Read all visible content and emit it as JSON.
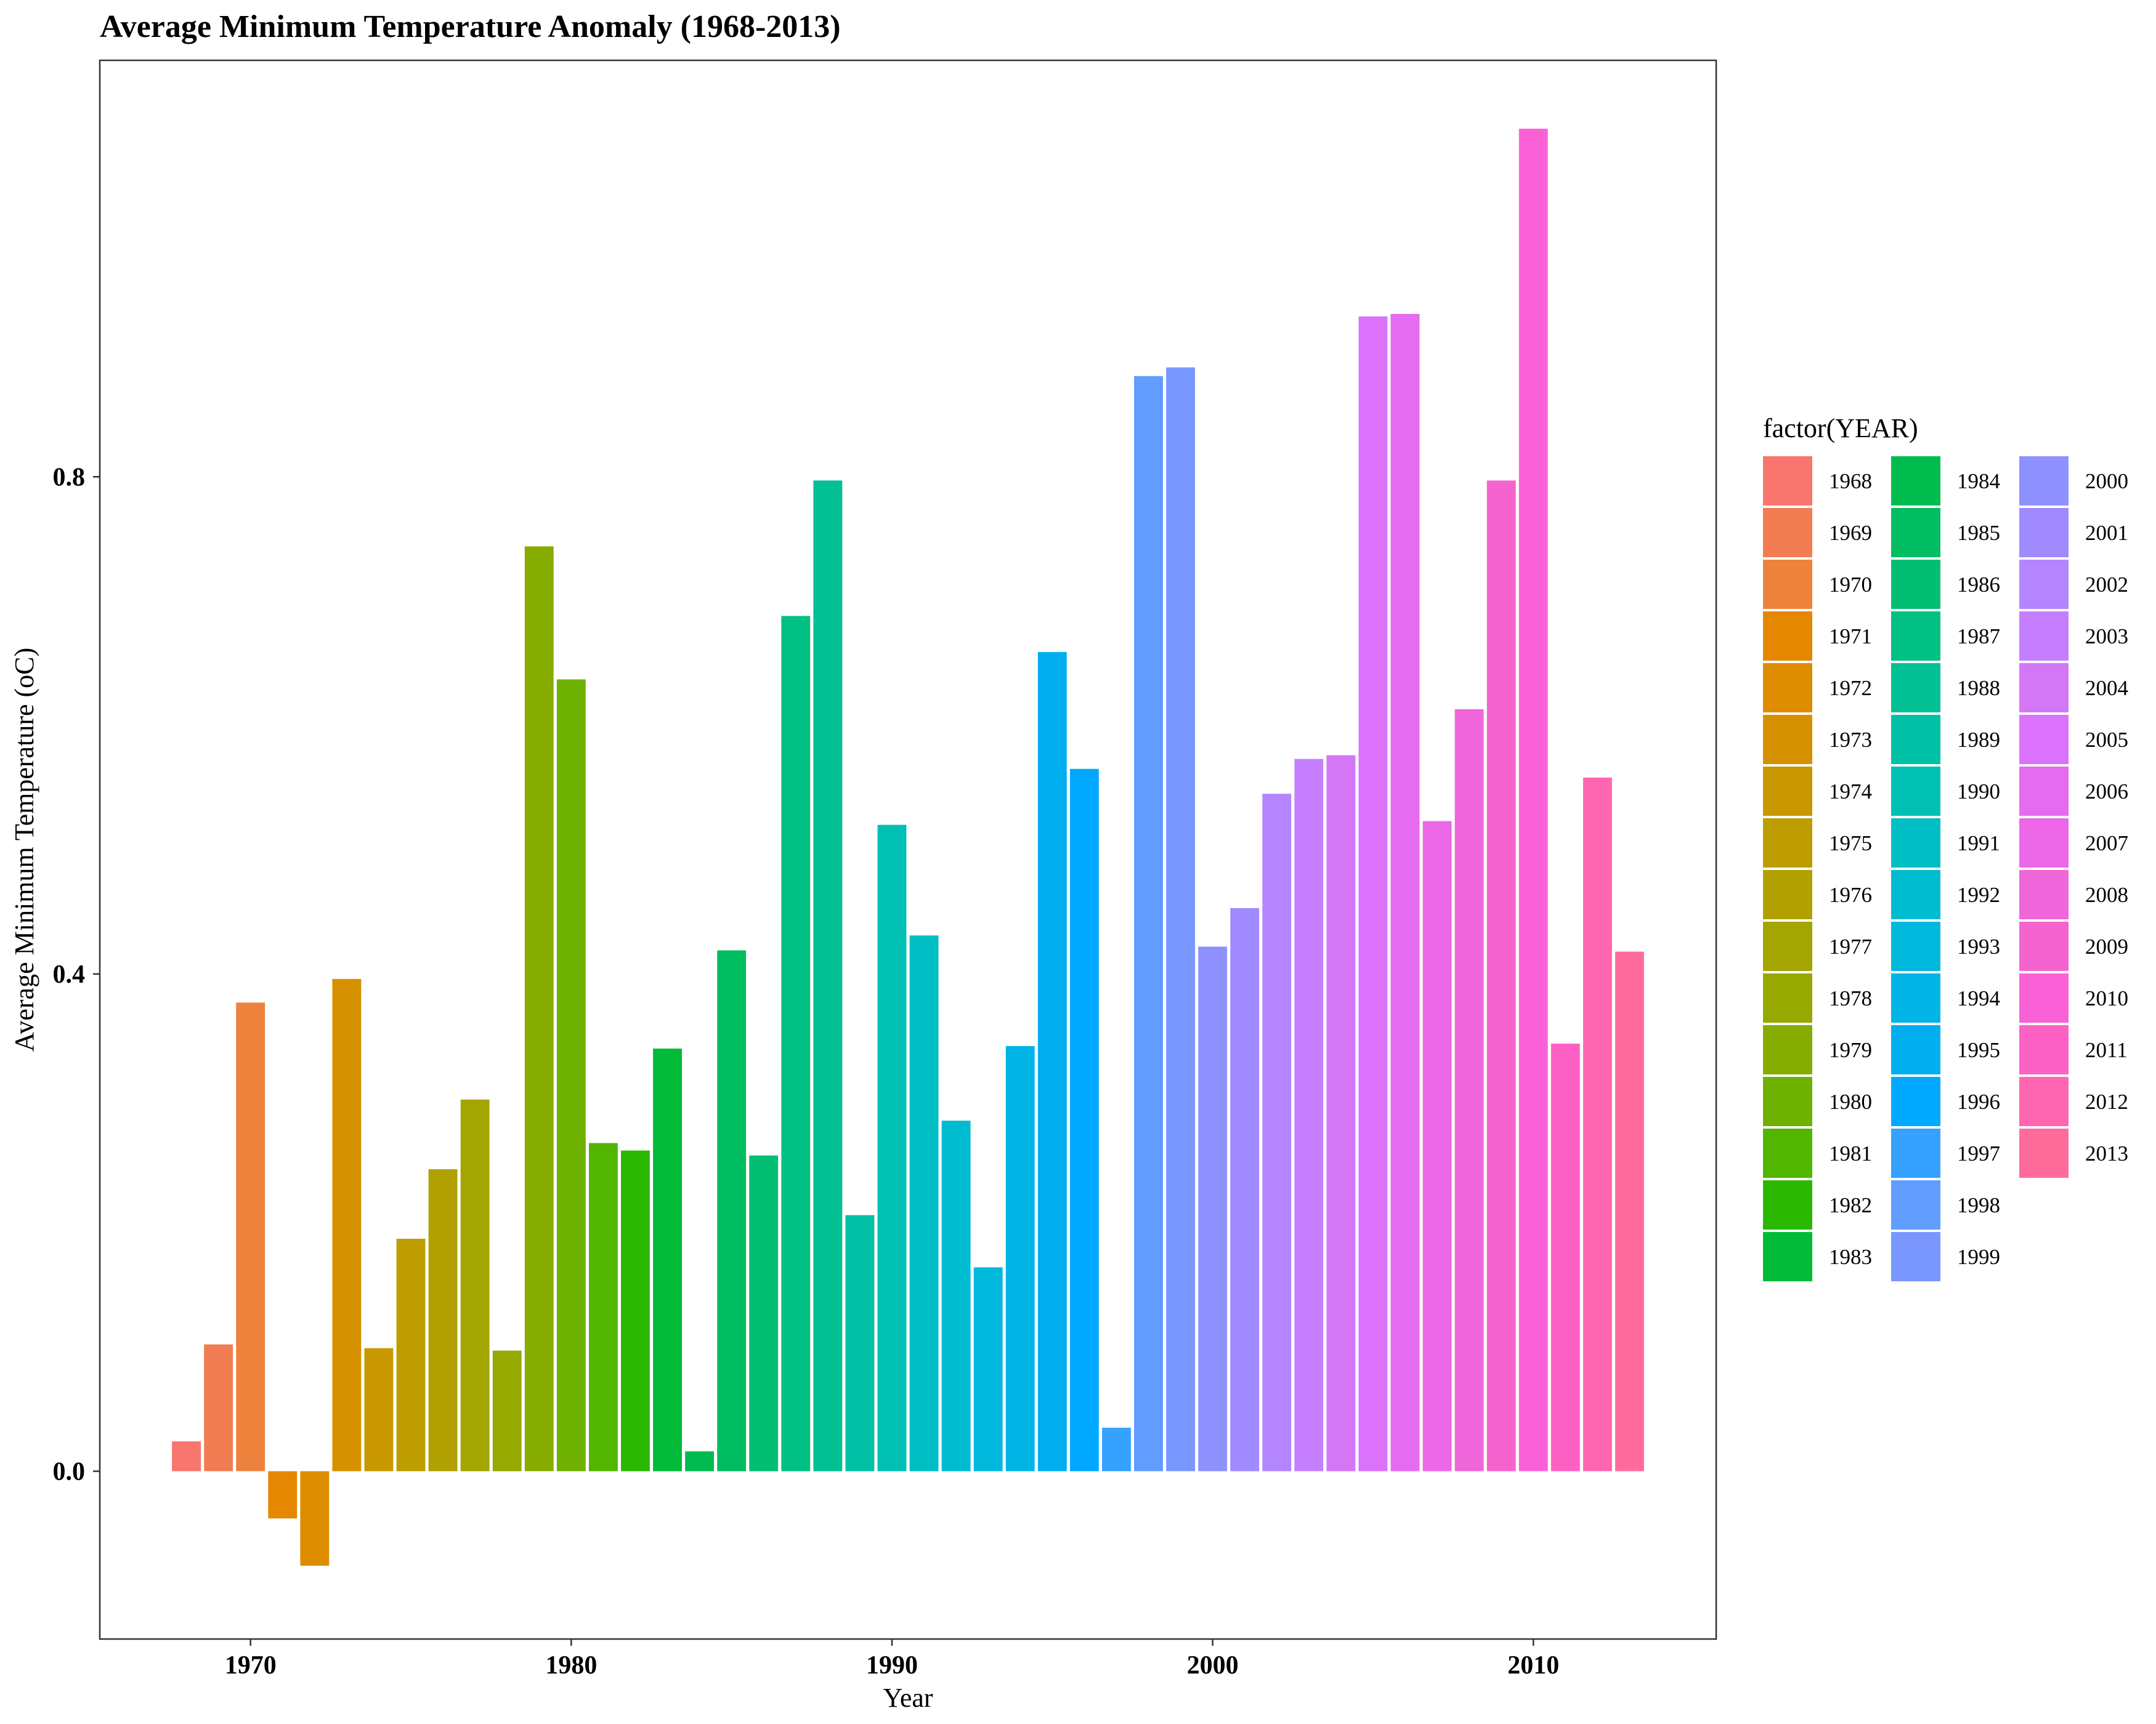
{
  "chart_data": {
    "type": "bar",
    "title": "Average Minimum Temperature Anomaly (1968-2013)",
    "xlabel": "Year",
    "ylabel": "Average Minimum Temperature (oC)",
    "legend_title": "factor(YEAR)",
    "legend_placement": "right",
    "grid": false,
    "xlim": [
      1965.3,
      2015.7
    ],
    "ylim": [
      -0.135,
      1.135
    ],
    "x_ticks": [
      1970,
      1980,
      1990,
      2000,
      2010
    ],
    "x_tick_labels": [
      "1970",
      "1980",
      "1990",
      "2000",
      "2010"
    ],
    "y_ticks": [
      0.0,
      0.4,
      0.8
    ],
    "y_tick_labels": [
      "0.0",
      "0.4",
      "0.8"
    ],
    "categories": [
      "1968",
      "1969",
      "1970",
      "1971",
      "1972",
      "1973",
      "1974",
      "1975",
      "1976",
      "1977",
      "1978",
      "1979",
      "1980",
      "1981",
      "1982",
      "1983",
      "1984",
      "1985",
      "1986",
      "1987",
      "1988",
      "1989",
      "1990",
      "1991",
      "1992",
      "1993",
      "1994",
      "1995",
      "1996",
      "1997",
      "1998",
      "1999",
      "2000",
      "2001",
      "2002",
      "2003",
      "2004",
      "2005",
      "2006",
      "2007",
      "2008",
      "2009",
      "2010",
      "2011",
      "2012",
      "2013"
    ],
    "x": [
      1968,
      1969,
      1970,
      1971,
      1972,
      1973,
      1974,
      1975,
      1976,
      1977,
      1978,
      1979,
      1980,
      1981,
      1982,
      1983,
      1984,
      1985,
      1986,
      1987,
      1988,
      1989,
      1990,
      1991,
      1992,
      1993,
      1994,
      1995,
      1996,
      1997,
      1998,
      1999,
      2000,
      2001,
      2002,
      2003,
      2004,
      2005,
      2006,
      2007,
      2008,
      2009,
      2010,
      2011,
      2012,
      2013
    ],
    "values": [
      0.024,
      0.102,
      0.377,
      -0.038,
      -0.076,
      0.396,
      0.099,
      0.187,
      0.243,
      0.299,
      0.097,
      0.744,
      0.637,
      0.264,
      0.258,
      0.34,
      0.016,
      0.419,
      0.254,
      0.688,
      0.797,
      0.206,
      0.52,
      0.431,
      0.282,
      0.164,
      0.342,
      0.659,
      0.565,
      0.035,
      0.881,
      0.888,
      0.422,
      0.453,
      0.545,
      0.573,
      0.576,
      0.929,
      0.931,
      0.523,
      0.613,
      0.797,
      1.08,
      0.344,
      0.558,
      0.418
    ],
    "colors": [
      "#F8766D",
      "#F27D52",
      "#EC823C",
      "#E58700",
      "#DE8C00",
      "#D69100",
      "#C99800",
      "#BD9D00",
      "#B0A100",
      "#A3A500",
      "#95A900",
      "#87AC00",
      "#6FB100",
      "#52B500",
      "#2AB800",
      "#00BA38",
      "#00BC4F",
      "#00BD61",
      "#00BF73",
      "#00C083",
      "#00C094",
      "#00C0A5",
      "#00C0B4",
      "#00BFC4",
      "#00BCD1",
      "#00B8DC",
      "#00B4E6",
      "#00AEF0",
      "#00A9FF",
      "#35A2FF",
      "#619CFF",
      "#7997FF",
      "#8F91FF",
      "#A08AFF",
      "#B385FF",
      "#C57EFF",
      "#D377F7",
      "#DB72FB",
      "#E56BF0",
      "#EC68E8",
      "#F066DB",
      "#F564CE",
      "#FB61D7",
      "#FE61C4",
      "#FF66B0",
      "#FF6C9C"
    ]
  }
}
